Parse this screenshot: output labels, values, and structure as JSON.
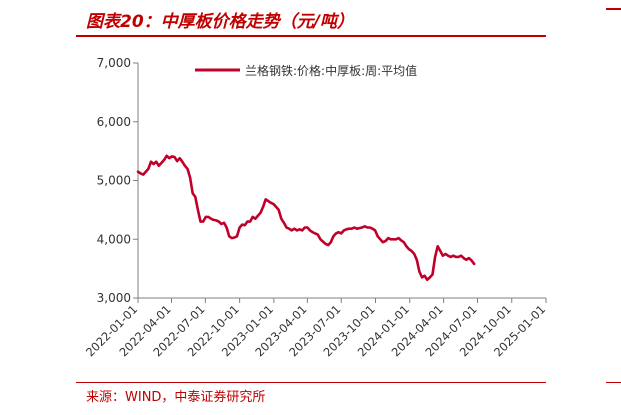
{
  "header": {
    "title": "图表20：中厚板价格走势（元/吨）"
  },
  "footer": {
    "source": "来源：WIND，中泰证券研究所"
  },
  "colors": {
    "accent": "#c00000",
    "series": "#c0002a",
    "axis": "#808080"
  },
  "chart_data": {
    "type": "line",
    "title": "",
    "xlabel": "",
    "ylabel": "",
    "ylim": [
      3000,
      7000
    ],
    "yticks": [
      3000,
      4000,
      5000,
      6000,
      7000
    ],
    "ytick_labels": [
      "3,000",
      "4,000",
      "5,000",
      "6,000",
      "7,000"
    ],
    "xticks": [
      "2022-01-01",
      "2022-04-01",
      "2022-07-01",
      "2022-10-01",
      "2023-01-01",
      "2023-04-01",
      "2023-07-01",
      "2023-10-01",
      "2024-01-01",
      "2024-04-01",
      "2024-07-01",
      "2024-10-01",
      "2025-01-01"
    ],
    "legend_position": "top",
    "grid": false,
    "series": [
      {
        "name": "兰格钢铁:价格:中厚板:周:平均值",
        "points": [
          [
            "2022-01-01",
            5150
          ],
          [
            "2022-01-08",
            5120
          ],
          [
            "2022-01-15",
            5100
          ],
          [
            "2022-01-22",
            5150
          ],
          [
            "2022-01-29",
            5200
          ],
          [
            "2022-02-05",
            5320
          ],
          [
            "2022-02-12",
            5280
          ],
          [
            "2022-02-19",
            5320
          ],
          [
            "2022-02-26",
            5250
          ],
          [
            "2022-03-05",
            5300
          ],
          [
            "2022-03-12",
            5350
          ],
          [
            "2022-03-19",
            5420
          ],
          [
            "2022-03-26",
            5380
          ],
          [
            "2022-04-02",
            5410
          ],
          [
            "2022-04-09",
            5400
          ],
          [
            "2022-04-16",
            5330
          ],
          [
            "2022-04-23",
            5380
          ],
          [
            "2022-04-30",
            5320
          ],
          [
            "2022-05-07",
            5250
          ],
          [
            "2022-05-14",
            5200
          ],
          [
            "2022-05-21",
            5050
          ],
          [
            "2022-05-28",
            4780
          ],
          [
            "2022-06-04",
            4720
          ],
          [
            "2022-06-11",
            4500
          ],
          [
            "2022-06-18",
            4300
          ],
          [
            "2022-06-25",
            4300
          ],
          [
            "2022-07-02",
            4380
          ],
          [
            "2022-07-09",
            4380
          ],
          [
            "2022-07-16",
            4350
          ],
          [
            "2022-07-23",
            4330
          ],
          [
            "2022-07-30",
            4320
          ],
          [
            "2022-08-06",
            4300
          ],
          [
            "2022-08-13",
            4260
          ],
          [
            "2022-08-20",
            4280
          ],
          [
            "2022-08-27",
            4200
          ],
          [
            "2022-09-03",
            4050
          ],
          [
            "2022-09-10",
            4020
          ],
          [
            "2022-09-17",
            4030
          ],
          [
            "2022-09-24",
            4050
          ],
          [
            "2022-10-01",
            4200
          ],
          [
            "2022-10-08",
            4250
          ],
          [
            "2022-10-15",
            4240
          ],
          [
            "2022-10-22",
            4300
          ],
          [
            "2022-10-29",
            4300
          ],
          [
            "2022-11-05",
            4380
          ],
          [
            "2022-11-12",
            4350
          ],
          [
            "2022-11-19",
            4400
          ],
          [
            "2022-11-26",
            4450
          ],
          [
            "2022-12-03",
            4550
          ],
          [
            "2022-12-10",
            4680
          ],
          [
            "2022-12-17",
            4650
          ],
          [
            "2022-12-24",
            4620
          ],
          [
            "2022-12-31",
            4600
          ],
          [
            "2023-01-07",
            4550
          ],
          [
            "2023-01-14",
            4500
          ],
          [
            "2023-01-21",
            4350
          ],
          [
            "2023-01-28",
            4280
          ],
          [
            "2023-02-04",
            4200
          ],
          [
            "2023-02-11",
            4180
          ],
          [
            "2023-02-18",
            4150
          ],
          [
            "2023-02-25",
            4180
          ],
          [
            "2023-03-04",
            4150
          ],
          [
            "2023-03-11",
            4170
          ],
          [
            "2023-03-18",
            4150
          ],
          [
            "2023-03-25",
            4200
          ],
          [
            "2023-04-01",
            4200
          ],
          [
            "2023-04-08",
            4150
          ],
          [
            "2023-04-15",
            4120
          ],
          [
            "2023-04-22",
            4100
          ],
          [
            "2023-04-29",
            4080
          ],
          [
            "2023-05-06",
            4000
          ],
          [
            "2023-05-13",
            3960
          ],
          [
            "2023-05-20",
            3920
          ],
          [
            "2023-05-27",
            3900
          ],
          [
            "2023-06-03",
            3950
          ],
          [
            "2023-06-10",
            4050
          ],
          [
            "2023-06-17",
            4100
          ],
          [
            "2023-06-24",
            4120
          ],
          [
            "2023-07-01",
            4100
          ],
          [
            "2023-07-08",
            4150
          ],
          [
            "2023-07-15",
            4170
          ],
          [
            "2023-07-22",
            4180
          ],
          [
            "2023-07-29",
            4180
          ],
          [
            "2023-08-05",
            4200
          ],
          [
            "2023-08-12",
            4180
          ],
          [
            "2023-08-19",
            4190
          ],
          [
            "2023-08-26",
            4200
          ],
          [
            "2023-09-02",
            4220
          ],
          [
            "2023-09-09",
            4200
          ],
          [
            "2023-09-16",
            4200
          ],
          [
            "2023-09-23",
            4180
          ],
          [
            "2023-09-30",
            4150
          ],
          [
            "2023-10-07",
            4050
          ],
          [
            "2023-10-14",
            4000
          ],
          [
            "2023-10-21",
            3950
          ],
          [
            "2023-10-28",
            3970
          ],
          [
            "2023-11-04",
            4020
          ],
          [
            "2023-11-11",
            4000
          ],
          [
            "2023-11-18",
            4000
          ],
          [
            "2023-11-25",
            4000
          ],
          [
            "2023-12-02",
            4020
          ],
          [
            "2023-12-09",
            3980
          ],
          [
            "2023-12-16",
            3950
          ],
          [
            "2023-12-23",
            3880
          ],
          [
            "2023-12-30",
            3830
          ],
          [
            "2024-01-06",
            3800
          ],
          [
            "2024-01-13",
            3750
          ],
          [
            "2024-01-20",
            3650
          ],
          [
            "2024-01-27",
            3450
          ],
          [
            "2024-02-03",
            3350
          ],
          [
            "2024-02-10",
            3380
          ],
          [
            "2024-02-17",
            3310
          ],
          [
            "2024-02-24",
            3350
          ],
          [
            "2024-03-02",
            3400
          ],
          [
            "2024-03-09",
            3700
          ],
          [
            "2024-03-16",
            3880
          ],
          [
            "2024-03-23",
            3800
          ],
          [
            "2024-03-30",
            3720
          ],
          [
            "2024-04-06",
            3750
          ],
          [
            "2024-04-13",
            3720
          ],
          [
            "2024-04-20",
            3700
          ],
          [
            "2024-04-27",
            3720
          ],
          [
            "2024-05-04",
            3700
          ],
          [
            "2024-05-11",
            3700
          ],
          [
            "2024-05-18",
            3720
          ],
          [
            "2024-05-25",
            3680
          ],
          [
            "2024-06-01",
            3650
          ],
          [
            "2024-06-08",
            3680
          ],
          [
            "2024-06-15",
            3640
          ],
          [
            "2024-06-22",
            3580
          ]
        ]
      }
    ]
  }
}
